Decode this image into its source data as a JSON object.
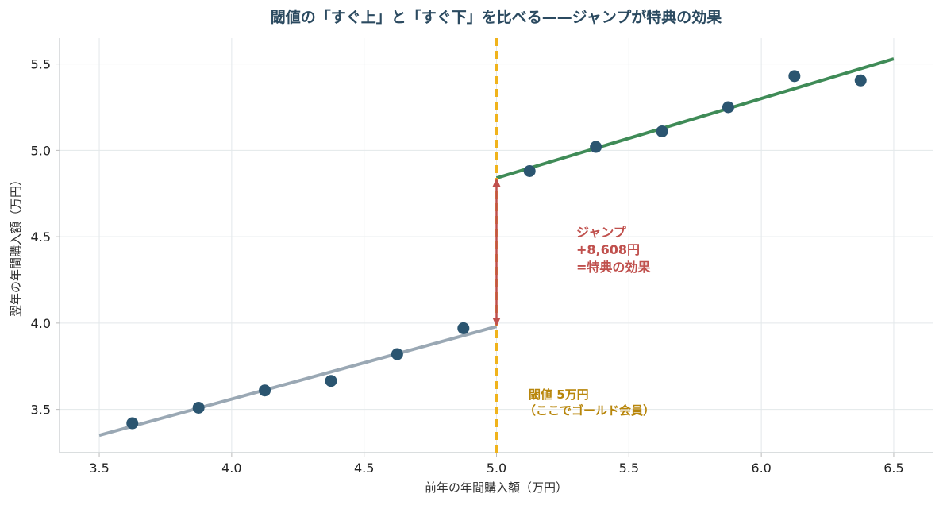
{
  "chart_data": {
    "type": "scatter",
    "title": "閾値の「すぐ上」と「すぐ下」を比べる——ジャンプが特典の効果",
    "xlabel": "前年の年間購入額（万円）",
    "ylabel": "翌年の年間購入額（万円）",
    "xlim": [
      3.35,
      6.65
    ],
    "ylim": [
      3.25,
      5.65
    ],
    "x_ticks": [
      "3.5",
      "4.0",
      "4.5",
      "5.0",
      "5.5",
      "6.0",
      "6.5"
    ],
    "y_ticks": [
      "3.5",
      "4.0",
      "4.5",
      "5.0",
      "5.5"
    ],
    "grid": true,
    "series": [
      {
        "points": [
          {
            "x": 3.625,
            "y": 3.42
          },
          {
            "x": 3.875,
            "y": 3.51
          },
          {
            "x": 4.125,
            "y": 3.61
          },
          {
            "x": 4.375,
            "y": 3.665
          },
          {
            "x": 4.625,
            "y": 3.82
          },
          {
            "x": 4.875,
            "y": 3.97
          },
          {
            "x": 5.125,
            "y": 4.88
          },
          {
            "x": 5.375,
            "y": 5.02
          },
          {
            "x": 5.625,
            "y": 5.11
          },
          {
            "x": 5.875,
            "y": 5.25
          },
          {
            "x": 6.125,
            "y": 5.43
          },
          {
            "x": 6.375,
            "y": 5.405
          }
        ]
      }
    ],
    "fit_lines": [
      {
        "x": [
          3.5,
          5.0
        ],
        "y": [
          3.35,
          3.98
        ]
      },
      {
        "x": [
          5.0,
          6.5
        ],
        "y": [
          4.84,
          5.53
        ]
      }
    ],
    "threshold_x": 5.0,
    "jump": {
      "x": 5.0,
      "y_from": 3.98,
      "y_to": 4.84
    },
    "annotations": {
      "jump_lines": [
        "ジャンプ",
        "+8,608円",
        "=特典の効果"
      ],
      "threshold_lines": [
        "閾値 5万円",
        "（ここでゴールド会員）"
      ]
    },
    "colors": {
      "points": "#2b5570",
      "fit_below": "#9aa8b4",
      "fit_above": "#3f8b57",
      "threshold": "#f0b31c",
      "jump_arrow": "#c0504d",
      "threshold_text": "#b8860b",
      "jump_text": "#c0504d",
      "grid": "#e3e8ea",
      "title": "#2b4a60"
    }
  }
}
